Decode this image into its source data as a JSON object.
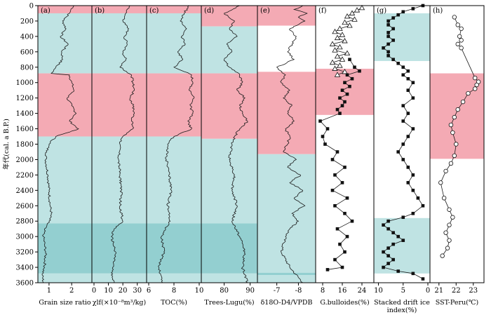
{
  "chart_data": {
    "type": "line",
    "title": "",
    "ylabel": "年代(cal. a B.P.)",
    "ylim": [
      0,
      3600
    ],
    "yticks": [
      0,
      200,
      400,
      600,
      800,
      1000,
      1200,
      1400,
      1600,
      1800,
      2000,
      2200,
      2400,
      2600,
      2800,
      3000,
      3200,
      3400,
      3600
    ],
    "colors": {
      "warm": "#f4aab4",
      "cold": "#bfe3e3",
      "cold_dark": "#93cfd0",
      "line": "#1a1a1a"
    },
    "panels": [
      {
        "id": "a",
        "label": "(a)",
        "xlabel": "Grain size ratio",
        "xticks": [
          "1",
          "2"
        ],
        "xtick_values": [
          1,
          2
        ],
        "xlim": [
          0.6,
          2.8
        ],
        "bands": [
          {
            "from": 0,
            "to": 100,
            "kind": "warm"
          },
          {
            "from": 100,
            "to": 880,
            "kind": "cold"
          },
          {
            "from": 880,
            "to": 1700,
            "kind": "warm"
          },
          {
            "from": 1700,
            "to": 2830,
            "kind": "cold"
          },
          {
            "from": 2830,
            "to": 3480,
            "kind": "cold_dark"
          },
          {
            "from": 3480,
            "to": 3600,
            "kind": "cold"
          }
        ],
        "series": [
          {
            "name": "grain size ratio",
            "marker": "none",
            "y": [
              0,
              100,
              200,
              300,
              400,
              500,
              600,
              700,
              800,
              880,
              900,
              1000,
              1100,
              1200,
              1300,
              1400,
              1500,
              1600,
              1700,
              1800,
              1900,
              2000,
              2200,
              2400,
              2600,
              2700,
              2800,
              2900,
              3000,
              3100,
              3200,
              3400,
              3500,
              3600
            ],
            "x": [
              2.1,
              1.9,
              1.6,
              1.75,
              1.5,
              1.85,
              1.55,
              1.6,
              1.3,
              1.1,
              1.9,
              2.0,
              2.1,
              1.8,
              2.0,
              2.2,
              1.9,
              2.3,
              1.3,
              1.0,
              0.9,
              0.85,
              0.95,
              1.0,
              1.05,
              1.1,
              1.0,
              0.8,
              0.75,
              0.8,
              0.85,
              0.8,
              0.7,
              0.75
            ]
          }
        ]
      },
      {
        "id": "b",
        "label": "(b)",
        "xlabel": "χlf(×10⁻⁸m³/kg)",
        "xticks": [
          "0",
          "10",
          "20",
          "30"
        ],
        "xtick_values": [
          0,
          10,
          20,
          30
        ],
        "xlim": [
          0,
          35
        ],
        "bands": [
          {
            "from": 0,
            "to": 100,
            "kind": "warm"
          },
          {
            "from": 100,
            "to": 880,
            "kind": "cold"
          },
          {
            "from": 880,
            "to": 1700,
            "kind": "warm"
          },
          {
            "from": 1700,
            "to": 2830,
            "kind": "cold"
          },
          {
            "from": 2830,
            "to": 3480,
            "kind": "cold_dark"
          },
          {
            "from": 3480,
            "to": 3600,
            "kind": "cold"
          }
        ],
        "series": [
          {
            "name": "magnetic susceptibility",
            "marker": "none",
            "y": [
              0,
              100,
              200,
              300,
              400,
              500,
              600,
              700,
              800,
              900,
              1000,
              1100,
              1200,
              1300,
              1400,
              1500,
              1600,
              1700,
              1800,
              2000,
              2200,
              2400,
              2600,
              2800,
              2900,
              3000,
              3200,
              3400,
              3500,
              3600
            ],
            "x": [
              25,
              22,
              20,
              24,
              21,
              23,
              20,
              22,
              18,
              26,
              27,
              28,
              25,
              27,
              28,
              26,
              27,
              20,
              18,
              17,
              18,
              19,
              18,
              20,
              14,
              12,
              15,
              13,
              12,
              14
            ]
          }
        ]
      },
      {
        "id": "c",
        "label": "(c)",
        "xlabel": "TOC(%)",
        "xticks": [
          "6",
          "8",
          "10"
        ],
        "xtick_values": [
          6,
          8,
          10
        ],
        "xlim": [
          6,
          10
        ],
        "bands": [
          {
            "from": 0,
            "to": 100,
            "kind": "warm"
          },
          {
            "from": 100,
            "to": 880,
            "kind": "cold"
          },
          {
            "from": 880,
            "to": 1700,
            "kind": "warm"
          },
          {
            "from": 1700,
            "to": 2830,
            "kind": "cold"
          },
          {
            "from": 2830,
            "to": 3480,
            "kind": "cold_dark"
          },
          {
            "from": 3480,
            "to": 3600,
            "kind": "cold"
          }
        ],
        "series": [
          {
            "name": "TOC",
            "marker": "none",
            "y": [
              0,
              100,
              200,
              300,
              400,
              500,
              600,
              700,
              800,
              900,
              1000,
              1100,
              1200,
              1300,
              1400,
              1500,
              1600,
              1700,
              1800,
              2000,
              2200,
              2400,
              2600,
              2800,
              3000,
              3200,
              3400,
              3600
            ],
            "x": [
              9.2,
              8.8,
              8.5,
              9.0,
              8.6,
              8.9,
              8.3,
              8.7,
              8.0,
              9.4,
              9.5,
              9.2,
              9.6,
              9.3,
              9.5,
              9.1,
              9.4,
              8.0,
              7.5,
              7.4,
              7.6,
              7.8,
              7.5,
              7.7,
              7.0,
              7.2,
              6.8,
              7.1
            ]
          }
        ]
      },
      {
        "id": "d",
        "label": "(d)",
        "xlabel": "Trees-Lugu(%)",
        "xticks": [
          "80",
          "90"
        ],
        "xtick_values": [
          80,
          90
        ],
        "xlim": [
          72,
          92
        ],
        "bands": [
          {
            "from": 0,
            "to": 270,
            "kind": "warm"
          },
          {
            "from": 270,
            "to": 880,
            "kind": "cold"
          },
          {
            "from": 880,
            "to": 1730,
            "kind": "warm"
          },
          {
            "from": 1730,
            "to": 2830,
            "kind": "cold"
          },
          {
            "from": 2830,
            "to": 3480,
            "kind": "cold_dark"
          },
          {
            "from": 3480,
            "to": 3600,
            "kind": "cold"
          }
        ],
        "series": [
          {
            "name": "trees pollen",
            "marker": "none",
            "y": [
              0,
              100,
              200,
              300,
              400,
              500,
              600,
              700,
              800,
              900,
              1000,
              1100,
              1200,
              1300,
              1400,
              1500,
              1600,
              1700,
              1800,
              2000,
              2200,
              2400,
              2600,
              2800,
              3000,
              3200,
              3400,
              3600
            ],
            "x": [
              86,
              80,
              84,
              82,
              85,
              81,
              83,
              80,
              82,
              86,
              87,
              85,
              88,
              86,
              87,
              89,
              86,
              84,
              83,
              82,
              84,
              83,
              85,
              83,
              86,
              88,
              87,
              89
            ]
          }
        ]
      },
      {
        "id": "e",
        "label": "(e)",
        "xlabel": "δ18O-D4/VPDB",
        "xticks": [
          "-7",
          "-8"
        ],
        "xtick_values": [
          -7,
          -8
        ],
        "xlim": [
          -6.2,
          -8.7
        ],
        "bands": [
          {
            "from": 0,
            "to": 260,
            "kind": "warm"
          },
          {
            "from": 860,
            "to": 1930,
            "kind": "warm"
          },
          {
            "from": 1930,
            "to": 3470,
            "kind": "cold"
          },
          {
            "from": 3470,
            "to": 3500,
            "kind": "cold_dark"
          },
          {
            "from": 3500,
            "to": 3600,
            "kind": "cold"
          }
        ],
        "series": [
          {
            "name": "speleothem δ18O",
            "marker": "none",
            "y": [
              0,
              50,
              100,
              150,
              200,
              300,
              400,
              500,
              600,
              700,
              800,
              900,
              1000,
              1100,
              1200,
              1300,
              1400,
              1500,
              1600,
              1700,
              1800,
              1900,
              2000,
              2100,
              2200,
              2300,
              2400,
              2500,
              2600,
              2700,
              2800,
              2900,
              3000,
              3200,
              3400,
              3600
            ],
            "x": [
              -8.2,
              -7.8,
              -8.4,
              -8.0,
              -8.3,
              -7.6,
              -7.9,
              -7.7,
              -7.5,
              -7.8,
              -7.0,
              -7.4,
              -7.2,
              -7.6,
              -7.3,
              -7.7,
              -7.5,
              -7.8,
              -7.4,
              -7.6,
              -7.5,
              -7.3,
              -7.9,
              -7.5,
              -8.1,
              -7.6,
              -8.2,
              -7.8,
              -8.3,
              -7.7,
              -8.0,
              -7.6,
              -7.4,
              -7.2,
              -7.6,
              -8.2
            ]
          }
        ]
      },
      {
        "id": "f",
        "label": "(f)",
        "xlabel": "G.bulloides(%)",
        "xticks": [
          "8",
          "16",
          "24"
        ],
        "xtick_values": [
          8,
          16,
          24
        ],
        "xlim": [
          6,
          28
        ],
        "bands": [
          {
            "from": 820,
            "to": 1420,
            "kind": "warm"
          }
        ],
        "series": [
          {
            "name": "G. bulloides open",
            "marker": "triangle",
            "y": [
              30,
              60,
              100,
              140,
              180,
              220,
              260,
              300,
              340,
              380,
              420,
              460,
              500,
              540,
              580,
              620,
              660,
              700,
              740,
              780,
              820,
              860,
              900
            ],
            "x": [
              24,
              22,
              20,
              18,
              21,
              17,
              19,
              15,
              13,
              16,
              14,
              17,
              12,
              15,
              13,
              18,
              14,
              16,
              12,
              15,
              13,
              17,
              14
            ]
          },
          {
            "name": "G. bulloides filled",
            "marker": "square",
            "y": [
              700,
              800,
              850,
              900,
              950,
              1000,
              1050,
              1100,
              1150,
              1200,
              1250,
              1300,
              1350,
              1400,
              1500,
              1600,
              1700,
              1800,
              1900,
              2000,
              2100,
              2200,
              2300,
              2400,
              2500,
              2600,
              2700,
              2800,
              2900,
              3000,
              3100,
              3200,
              3300,
              3400,
              3430
            ],
            "x": [
              19,
              21,
              23,
              18,
              20,
              17,
              19,
              16,
              18,
              15,
              17,
              16,
              14,
              15,
              7,
              10,
              8,
              9,
              14,
              12,
              17,
              13,
              16,
              12,
              18,
              13,
              17,
              20,
              14,
              18,
              15,
              17,
              13,
              16,
              10
            ]
          }
        ]
      },
      {
        "id": "g",
        "label": "(g)",
        "xlabel": "Stacked drift ice index(%)",
        "xticks": [
          "10",
          "5",
          "0"
        ],
        "xtick_values": [
          10,
          5,
          0
        ],
        "xlim": [
          10.5,
          0
        ],
        "bands": [
          {
            "from": 100,
            "to": 720,
            "kind": "cold"
          },
          {
            "from": 2760,
            "to": 3480,
            "kind": "cold"
          }
        ],
        "series": [
          {
            "name": "drift ice index",
            "marker": "square",
            "y": [
              0,
              40,
              80,
              120,
              160,
              200,
              250,
              300,
              350,
              400,
              450,
              500,
              550,
              600,
              650,
              700,
              750,
              800,
              850,
              900,
              950,
              1000,
              1100,
              1200,
              1300,
              1400,
              1500,
              1600,
              1700,
              1800,
              1900,
              2000,
              2100,
              2200,
              2300,
              2400,
              2500,
              2600,
              2700,
              2750,
              2800,
              2850,
              2900,
              2950,
              3000,
              3050,
              3100,
              3150,
              3200,
              3250,
              3300,
              3350,
              3400,
              3450,
              3480,
              3550
            ],
            "x": [
              1,
              3,
              5,
              6,
              7,
              8,
              8,
              7,
              8,
              8,
              7,
              8,
              9,
              8,
              8,
              7,
              6,
              5,
              4,
              5,
              4,
              3,
              4,
              3,
              5,
              4,
              5,
              3,
              4,
              5,
              6,
              5,
              4,
              3,
              4,
              3,
              2,
              1,
              3,
              5,
              8,
              9,
              8,
              7,
              6,
              5,
              7,
              8,
              9,
              8,
              7,
              8,
              9,
              6,
              3,
              1
            ]
          }
        ]
      },
      {
        "id": "h",
        "label": "(h)",
        "xlabel": "SST-Peru(℃)",
        "xticks": [
          "21",
          "22",
          "23"
        ],
        "xtick_values": [
          21,
          22,
          23
        ],
        "xlim": [
          20.6,
          23.5
        ],
        "bands": [
          {
            "from": 880,
            "to": 1990,
            "kind": "warm"
          }
        ],
        "series": [
          {
            "name": "SST Peru",
            "marker": "circle",
            "y": [
              150,
              250,
              300,
              400,
              450,
              500,
              550,
              940,
              990,
              1030,
              1080,
              1140,
              1250,
              1350,
              1450,
              1550,
              1650,
              1800,
              1950,
              2050,
              2150,
              2300,
              2500,
              2650,
              2750,
              2850,
              2950,
              3050,
              3150,
              3250
            ],
            "x": [
              21.9,
              22.1,
              22.3,
              22.2,
              22.3,
              22.1,
              22.3,
              23.1,
              23.3,
              23.2,
              23.1,
              22.7,
              22.4,
              22.1,
              21.9,
              21.7,
              21.8,
              22.0,
              21.9,
              21.7,
              21.4,
              21.1,
              21.3,
              21.6,
              21.8,
              21.6,
              21.4,
              21.6,
              21.5,
              21.2
            ]
          }
        ]
      }
    ]
  }
}
